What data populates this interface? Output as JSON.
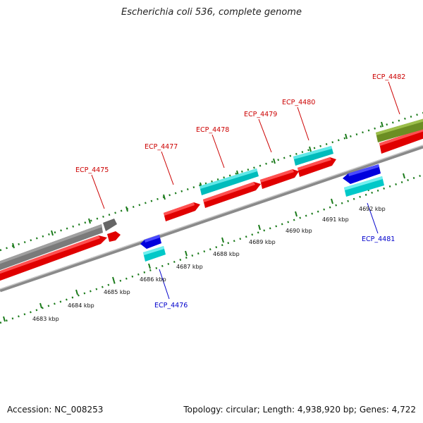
{
  "title": "Escherichia coli 536, complete genome",
  "footer": {
    "accession": "Accession: NC_008253",
    "summary": "Topology: circular; Length: 4,938,920 bp; Genes: 4,722"
  },
  "colors": {
    "forward_cds": "#ff0000",
    "reverse_cds": "#0000ff",
    "rna_forward": "#00c8c8",
    "rna_reverse": "#00e0e0",
    "pseudo": "#808080",
    "other": "#6b8e23",
    "tick": "#1a7a1a",
    "backbone": "#8a8a8a",
    "label_forward": "#cc0000",
    "label_reverse": "#0000cc"
  },
  "scale_labels": [
    "4683 kbp",
    "4684 kbp",
    "4685 kbp",
    "4686 kbp",
    "4687 kbp",
    "4688 kbp",
    "4689 kbp",
    "4690 kbp",
    "4691 kbp",
    "4692 kbp"
  ],
  "gene_labels": {
    "ecp4475": "ECP_4475",
    "ecp4476": "ECP_4476",
    "ecp4477": "ECP_4477",
    "ecp4478": "ECP_4478",
    "ecp4479": "ECP_4479",
    "ecp4480": "ECP_4480",
    "ecp4481": "ECP_4481",
    "ecp4482": "ECP_4482"
  }
}
